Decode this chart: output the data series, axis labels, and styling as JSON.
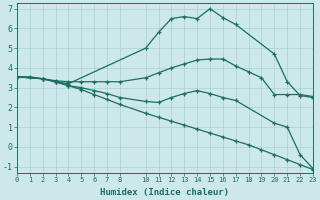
{
  "xlabel": "Humidex (Indice chaleur)",
  "background_color": "#cce8e8",
  "grid_color": "#aad0d0",
  "line_color": "#1a6e64",
  "xlim": [
    0,
    23
  ],
  "ylim": [
    -1.3,
    7.3
  ],
  "xticks": [
    0,
    1,
    2,
    3,
    4,
    5,
    6,
    7,
    8,
    10,
    11,
    12,
    13,
    14,
    15,
    16,
    17,
    18,
    19,
    20,
    21,
    22,
    23
  ],
  "yticks": [
    -1,
    0,
    1,
    2,
    3,
    4,
    5,
    6,
    7
  ],
  "line1_x": [
    0,
    1,
    2,
    3,
    4,
    5,
    6,
    7,
    8,
    10,
    11,
    12,
    13,
    14,
    15,
    16,
    17,
    18,
    19,
    20,
    21,
    22,
    23
  ],
  "line1_y": [
    3.55,
    3.55,
    3.45,
    3.35,
    3.3,
    3.3,
    3.3,
    3.3,
    3.3,
    3.5,
    3.75,
    4.0,
    4.2,
    4.4,
    4.45,
    4.45,
    4.1,
    3.8,
    3.5,
    2.65,
    2.65,
    2.65,
    2.55
  ],
  "line2_x": [
    0,
    2,
    3,
    4,
    5,
    6,
    7,
    8,
    10,
    11,
    12,
    13,
    14,
    15,
    16,
    17,
    20,
    21,
    22,
    23
  ],
  "line2_y": [
    3.55,
    3.45,
    3.3,
    3.1,
    3.0,
    2.85,
    2.7,
    2.5,
    2.3,
    2.25,
    2.5,
    2.7,
    2.85,
    2.7,
    2.5,
    2.35,
    1.2,
    1.0,
    -0.4,
    -1.1
  ],
  "line3_x": [
    0,
    2,
    3,
    4,
    10,
    11,
    12,
    13,
    14,
    15,
    16,
    17,
    20,
    21,
    22,
    23
  ],
  "line3_y": [
    3.55,
    3.45,
    3.3,
    3.2,
    5.0,
    5.8,
    6.5,
    6.6,
    6.5,
    7.0,
    6.55,
    6.2,
    4.7,
    3.3,
    2.6,
    2.5
  ],
  "line4_x": [
    0,
    2,
    3,
    4,
    5,
    6,
    7,
    8,
    10,
    11,
    12,
    13,
    14,
    15,
    16,
    17,
    18,
    19,
    20,
    21,
    22,
    23
  ],
  "line4_y": [
    3.55,
    3.45,
    3.3,
    3.1,
    2.9,
    2.65,
    2.4,
    2.15,
    1.7,
    1.5,
    1.3,
    1.1,
    0.9,
    0.7,
    0.5,
    0.3,
    0.1,
    -0.15,
    -0.4,
    -0.65,
    -0.9,
    -1.15
  ]
}
